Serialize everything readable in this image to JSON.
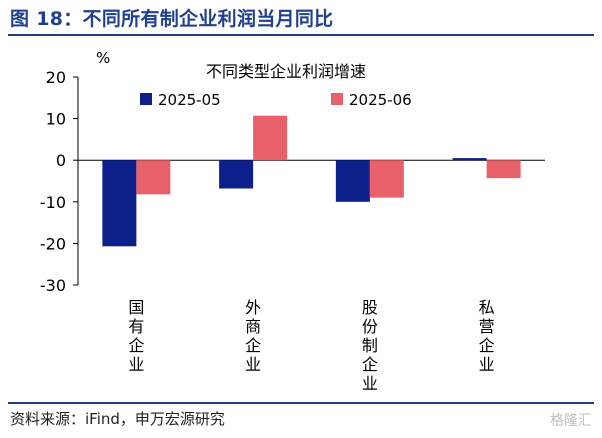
{
  "figure": {
    "label": "图 18：不同所有制企业利润当月同比",
    "source": "资料来源：iFind，申万宏源研究",
    "watermark": "格隆汇"
  },
  "chart_data": {
    "type": "bar",
    "title": "不同类型企业利润增速",
    "ylabel": "%",
    "ylim": [
      -30,
      20
    ],
    "yticks": [
      20,
      10,
      0,
      -10,
      -20,
      -30
    ],
    "grid": false,
    "legend_position": "top",
    "categories": [
      "国有企业",
      "外商企业",
      "股份制企业",
      "私营企业"
    ],
    "series": [
      {
        "name": "2025-05",
        "color": "#0d1f8a",
        "values": [
          -20.7,
          -6.8,
          -10.0,
          0.5
        ]
      },
      {
        "name": "2025-06",
        "color": "#e8606a",
        "values": [
          -8.2,
          10.7,
          -9.0,
          -4.3
        ]
      }
    ]
  }
}
